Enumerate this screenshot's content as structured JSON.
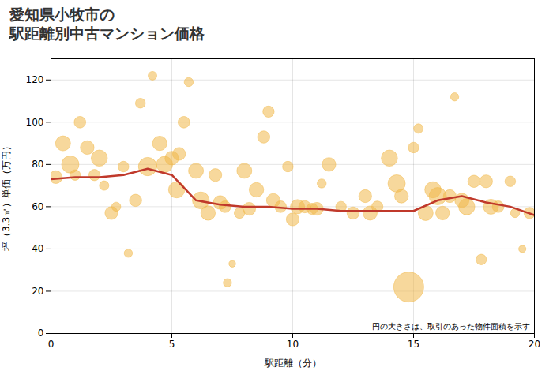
{
  "chart_data": {
    "type": "scatter",
    "title": "愛知県小牧市の\n駅距離別中古マンション価格",
    "xlabel": "駅距離（分）",
    "ylabel": "坪（3.3㎡）単価（万円）",
    "annotation": "円の大きさは、取引のあった物件面積を示す",
    "xlim": [
      0,
      20
    ],
    "ylim": [
      0,
      130
    ],
    "xticks": [
      0,
      5,
      10,
      15,
      20
    ],
    "yticks": [
      0,
      20,
      40,
      60,
      80,
      100,
      120
    ],
    "grid": true,
    "series": [
      {
        "type": "scatter",
        "color": "#f0b84a",
        "x": [
          0.2,
          0.5,
          0.8,
          1.0,
          1.2,
          1.5,
          1.8,
          2.0,
          2.2,
          2.5,
          2.7,
          3.0,
          3.2,
          3.5,
          3.7,
          4.0,
          4.2,
          4.5,
          4.7,
          5.0,
          5.2,
          5.3,
          5.5,
          5.7,
          6.0,
          6.2,
          6.5,
          6.8,
          7.0,
          7.2,
          7.3,
          7.5,
          7.8,
          8.0,
          8.2,
          8.5,
          8.8,
          9.0,
          9.2,
          9.5,
          9.8,
          10.0,
          10.2,
          10.5,
          10.8,
          11.0,
          11.2,
          11.5,
          12.0,
          12.5,
          13.0,
          13.2,
          13.5,
          14.0,
          14.3,
          14.5,
          14.8,
          15.0,
          15.2,
          15.5,
          15.8,
          16.0,
          16.2,
          16.5,
          16.7,
          17.0,
          17.2,
          17.5,
          17.8,
          18.0,
          18.2,
          18.5,
          19.0,
          19.2,
          19.5,
          19.8
        ],
        "values": [
          74,
          90,
          80,
          75,
          100,
          88,
          75,
          83,
          70,
          57,
          60,
          79,
          38,
          63,
          109,
          79,
          122,
          90,
          80,
          83,
          68,
          85,
          100,
          119,
          77,
          63,
          57,
          75,
          62,
          60,
          24,
          33,
          57,
          77,
          59,
          68,
          93,
          105,
          63,
          60,
          79,
          54,
          60,
          60,
          59,
          59,
          71,
          80,
          60,
          57,
          65,
          57,
          60,
          83,
          71,
          65,
          22,
          88,
          97,
          57,
          68,
          65,
          57,
          65,
          112,
          63,
          60,
          72,
          35,
          72,
          60,
          60,
          72,
          57,
          40,
          57
        ],
        "sizes": [
          2200,
          3000,
          4000,
          1500,
          1800,
          2500,
          1700,
          3500,
          1200,
          2200,
          1100,
          1500,
          900,
          2000,
          1300,
          4500,
          1000,
          2800,
          3500,
          2500,
          3500,
          2200,
          1800,
          1100,
          3000,
          3800,
          2800,
          2200,
          2500,
          1800,
          900,
          600,
          1500,
          3000,
          2200,
          2800,
          2000,
          1700,
          2500,
          1800,
          1500,
          2200,
          2700,
          2000,
          1700,
          2200,
          1100,
          2500,
          1500,
          2000,
          2200,
          2700,
          1700,
          3500,
          4000,
          2500,
          12000,
          1500,
          1200,
          3000,
          3500,
          4000,
          2500,
          2200,
          900,
          2700,
          3500,
          2000,
          1500,
          2200,
          3000,
          1800,
          1500,
          1100,
          700,
          1700
        ]
      },
      {
        "type": "line",
        "color": "#c0392b",
        "x": [
          0,
          1,
          2,
          3,
          4,
          5,
          6,
          7,
          8,
          9,
          10,
          11,
          12,
          13,
          14,
          15,
          16,
          17,
          18,
          19,
          20
        ],
        "values": [
          73,
          74,
          74,
          75,
          78,
          75,
          63,
          61,
          60,
          60,
          59,
          59,
          58,
          58,
          58,
          58,
          63,
          65,
          62,
          60,
          56
        ]
      }
    ]
  }
}
